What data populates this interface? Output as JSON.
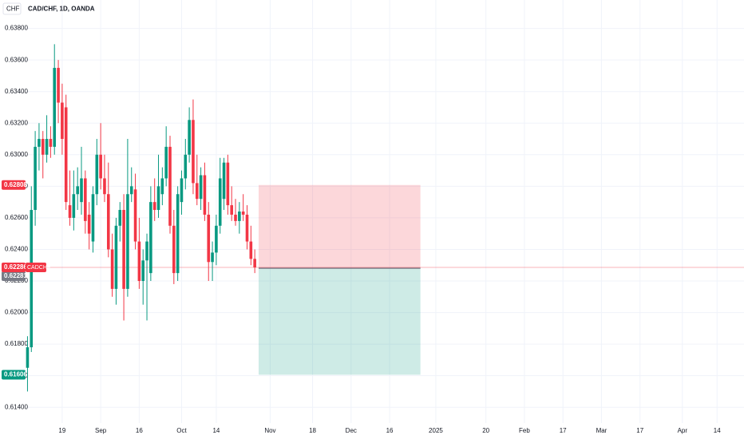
{
  "chart_data": {
    "type": "candlestick",
    "title": "CAD/CHF, 1D, OANDA",
    "currency": "CHF",
    "up_color": "#089981",
    "down_color": "#f23645",
    "open": [
      0.6165,
      0.6178,
      0.6265,
      0.6305,
      0.631,
      0.63,
      0.631,
      0.6305,
      0.6355,
      0.6333,
      0.633,
      0.6268,
      0.626,
      0.6275,
      0.627,
      0.6285,
      0.6262,
      0.6245,
      0.6275,
      0.63,
      0.6285,
      0.6275,
      0.624,
      0.6215,
      0.6255,
      0.6265,
      0.6215,
      0.6275,
      0.6278,
      0.6245,
      0.622,
      0.6233,
      0.6225,
      0.627,
      0.6265,
      0.6275,
      0.6285,
      0.6305,
      0.6255,
      0.6225,
      0.627,
      0.6285,
      0.63,
      0.6322,
      0.6282,
      0.6272,
      0.6287,
      0.6262,
      0.6232,
      0.6238,
      0.6255,
      0.6272,
      0.6295,
      0.6268,
      0.6262,
      0.6258,
      0.6264,
      0.6262,
      0.6245,
      0.6234
    ],
    "high": [
      0.6185,
      0.628,
      0.6315,
      0.632,
      0.6315,
      0.6325,
      0.6318,
      0.637,
      0.636,
      0.6345,
      0.6338,
      0.629,
      0.629,
      0.6292,
      0.6305,
      0.629,
      0.627,
      0.628,
      0.631,
      0.632,
      0.63,
      0.6295,
      0.625,
      0.626,
      0.627,
      0.6275,
      0.631,
      0.6292,
      0.6288,
      0.626,
      0.624,
      0.625,
      0.628,
      0.6285,
      0.63,
      0.6292,
      0.6318,
      0.6312,
      0.6265,
      0.628,
      0.629,
      0.631,
      0.633,
      0.6335,
      0.63,
      0.6292,
      0.6295,
      0.627,
      0.6245,
      0.6262,
      0.6298,
      0.6298,
      0.63,
      0.628,
      0.6272,
      0.627,
      0.6275,
      0.6268,
      0.6255,
      0.624
    ],
    "low": [
      0.615,
      0.6175,
      0.6255,
      0.629,
      0.6285,
      0.6295,
      0.6298,
      0.63,
      0.632,
      0.63,
      0.6265,
      0.6255,
      0.6252,
      0.6265,
      0.6262,
      0.625,
      0.624,
      0.6238,
      0.6268,
      0.6278,
      0.627,
      0.6235,
      0.621,
      0.6205,
      0.6245,
      0.6195,
      0.621,
      0.627,
      0.624,
      0.6215,
      0.6205,
      0.6195,
      0.622,
      0.6258,
      0.626,
      0.6268,
      0.628,
      0.625,
      0.6218,
      0.622,
      0.6262,
      0.6278,
      0.6295,
      0.6275,
      0.6268,
      0.6265,
      0.6258,
      0.622,
      0.622,
      0.623,
      0.625,
      0.6265,
      0.6262,
      0.6258,
      0.6255,
      0.625,
      0.6258,
      0.624,
      0.623,
      0.6225
    ],
    "close": [
      0.6178,
      0.6265,
      0.6305,
      0.631,
      0.63,
      0.631,
      0.6305,
      0.6355,
      0.6333,
      0.631,
      0.627,
      0.626,
      0.6275,
      0.628,
      0.6285,
      0.6258,
      0.625,
      0.6275,
      0.63,
      0.6285,
      0.6275,
      0.624,
      0.6215,
      0.6255,
      0.6265,
      0.6215,
      0.6275,
      0.628,
      0.6245,
      0.622,
      0.6233,
      0.6245,
      0.627,
      0.6265,
      0.628,
      0.6285,
      0.6305,
      0.6255,
      0.6225,
      0.6275,
      0.6285,
      0.63,
      0.6322,
      0.6282,
      0.6272,
      0.6287,
      0.6262,
      0.6232,
      0.6238,
      0.6255,
      0.6285,
      0.6295,
      0.6268,
      0.6262,
      0.6258,
      0.6264,
      0.6262,
      0.6245,
      0.6234,
      0.62286
    ],
    "xlim": [
      -0.3,
      186
    ],
    "ylim": [
      0.613,
      0.6398
    ],
    "yticks": [
      {
        "value": 0.614,
        "label": "0.61400"
      },
      {
        "value": 0.616,
        "label": "0.61600"
      },
      {
        "value": 0.618,
        "label": "0.61800"
      },
      {
        "value": 0.62,
        "label": "0.62000"
      },
      {
        "value": 0.622,
        "label": "0.62200"
      },
      {
        "value": 0.624,
        "label": "0.62400"
      },
      {
        "value": 0.626,
        "label": "0.62600"
      },
      {
        "value": 0.628,
        "label": "0.62800"
      },
      {
        "value": 0.63,
        "label": "0.63000"
      },
      {
        "value": 0.632,
        "label": "0.63200"
      },
      {
        "value": 0.634,
        "label": "0.63400"
      },
      {
        "value": 0.636,
        "label": "0.63600"
      },
      {
        "value": 0.638,
        "label": "0.63800"
      }
    ],
    "xticks": [
      {
        "value": 9,
        "label": "19"
      },
      {
        "value": 19,
        "label": "Sep"
      },
      {
        "value": 29,
        "label": "16"
      },
      {
        "value": 40,
        "label": "Oct"
      },
      {
        "value": 49,
        "label": "14"
      },
      {
        "value": 63,
        "label": "Nov"
      },
      {
        "value": 74,
        "label": "18"
      },
      {
        "value": 84,
        "label": "Dec"
      },
      {
        "value": 94,
        "label": "16"
      },
      {
        "value": 106,
        "label": "2025"
      },
      {
        "value": 119,
        "label": "20"
      },
      {
        "value": 129,
        "label": "Feb"
      },
      {
        "value": 139,
        "label": "17"
      },
      {
        "value": 149,
        "label": "Mar"
      },
      {
        "value": 159,
        "label": "17"
      },
      {
        "value": 170,
        "label": "Apr"
      },
      {
        "value": 179,
        "label": "14"
      }
    ],
    "grid": true,
    "last_price": {
      "value": 0.62286,
      "label": "0.62286",
      "symbol": "CADCHF"
    },
    "position": {
      "start": 60,
      "end": 102,
      "stop": {
        "value": 0.62808,
        "label": "0.62808"
      },
      "entry": {
        "value": 0.62281,
        "label": "0.62281"
      },
      "target": {
        "value": 0.61606,
        "label": "0.61606"
      }
    }
  }
}
